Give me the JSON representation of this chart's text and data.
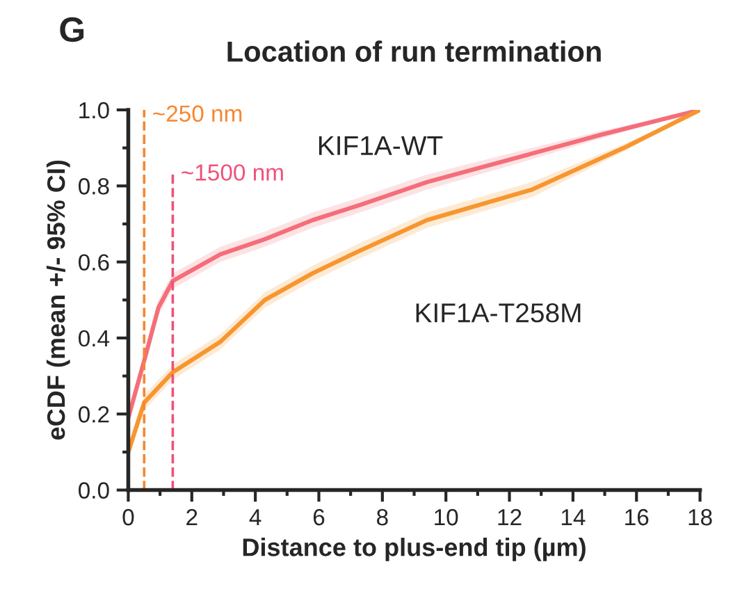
{
  "chart_data": {
    "type": "line",
    "title": "Location of run termination",
    "xlabel": "Distance to plus-end tip (µm)",
    "ylabel": "eCDF (mean +/- 95% CI)",
    "annotations": [
      "G"
    ],
    "series": [
      {
        "name": "KIF1A-WT",
        "color": "#f46e7a",
        "x": [
          0,
          0.5,
          0.95,
          1.4,
          2.9,
          4.3,
          5.8,
          7.3,
          9.4,
          12.7,
          14.9,
          18
        ],
        "values": [
          0.19,
          0.34,
          0.48,
          0.55,
          0.62,
          0.66,
          0.71,
          0.75,
          0.81,
          0.885,
          0.935,
          1.0
        ],
        "lower": [
          0.17,
          0.32,
          0.46,
          0.53,
          0.6,
          0.64,
          0.69,
          0.73,
          0.79,
          0.87,
          0.925,
          1.0
        ],
        "upper": [
          0.21,
          0.36,
          0.5,
          0.57,
          0.64,
          0.68,
          0.73,
          0.77,
          0.83,
          0.9,
          0.945,
          1.0
        ]
      },
      {
        "name": "KIF1A-T258M",
        "color": "#f7962f",
        "x": [
          0,
          0.5,
          1.4,
          2.9,
          4.3,
          5.8,
          7.3,
          9.4,
          12.7,
          15.6,
          18
        ],
        "values": [
          0.1,
          0.23,
          0.31,
          0.39,
          0.5,
          0.57,
          0.63,
          0.71,
          0.79,
          0.9,
          1.0
        ],
        "lower": [
          0.08,
          0.21,
          0.29,
          0.37,
          0.48,
          0.55,
          0.61,
          0.69,
          0.77,
          0.89,
          1.0
        ],
        "upper": [
          0.12,
          0.25,
          0.33,
          0.41,
          0.52,
          0.59,
          0.65,
          0.73,
          0.81,
          0.91,
          1.0
        ]
      }
    ],
    "ref_lines": [
      {
        "axis": "x",
        "value": 0.5,
        "label": "~250 nm",
        "color": "#f7862f",
        "line_style": "dashed"
      },
      {
        "axis": "x",
        "value": 1.4,
        "label": "~1500 nm",
        "color": "#f0507a",
        "line_style": "dashed"
      }
    ],
    "xlim": [
      0,
      18
    ],
    "xticks": [
      0,
      2,
      4,
      6,
      8,
      10,
      12,
      14,
      16,
      18
    ],
    "ylim": [
      0,
      1.0
    ],
    "yticks": [
      {
        "value": 0,
        "label": "0.0"
      },
      0.2,
      0.4,
      0.6,
      0.8,
      {
        "value": 1.0,
        "label": "1.0"
      }
    ],
    "grid": false,
    "legend": false,
    "marker": "none",
    "line_style": "solid"
  }
}
